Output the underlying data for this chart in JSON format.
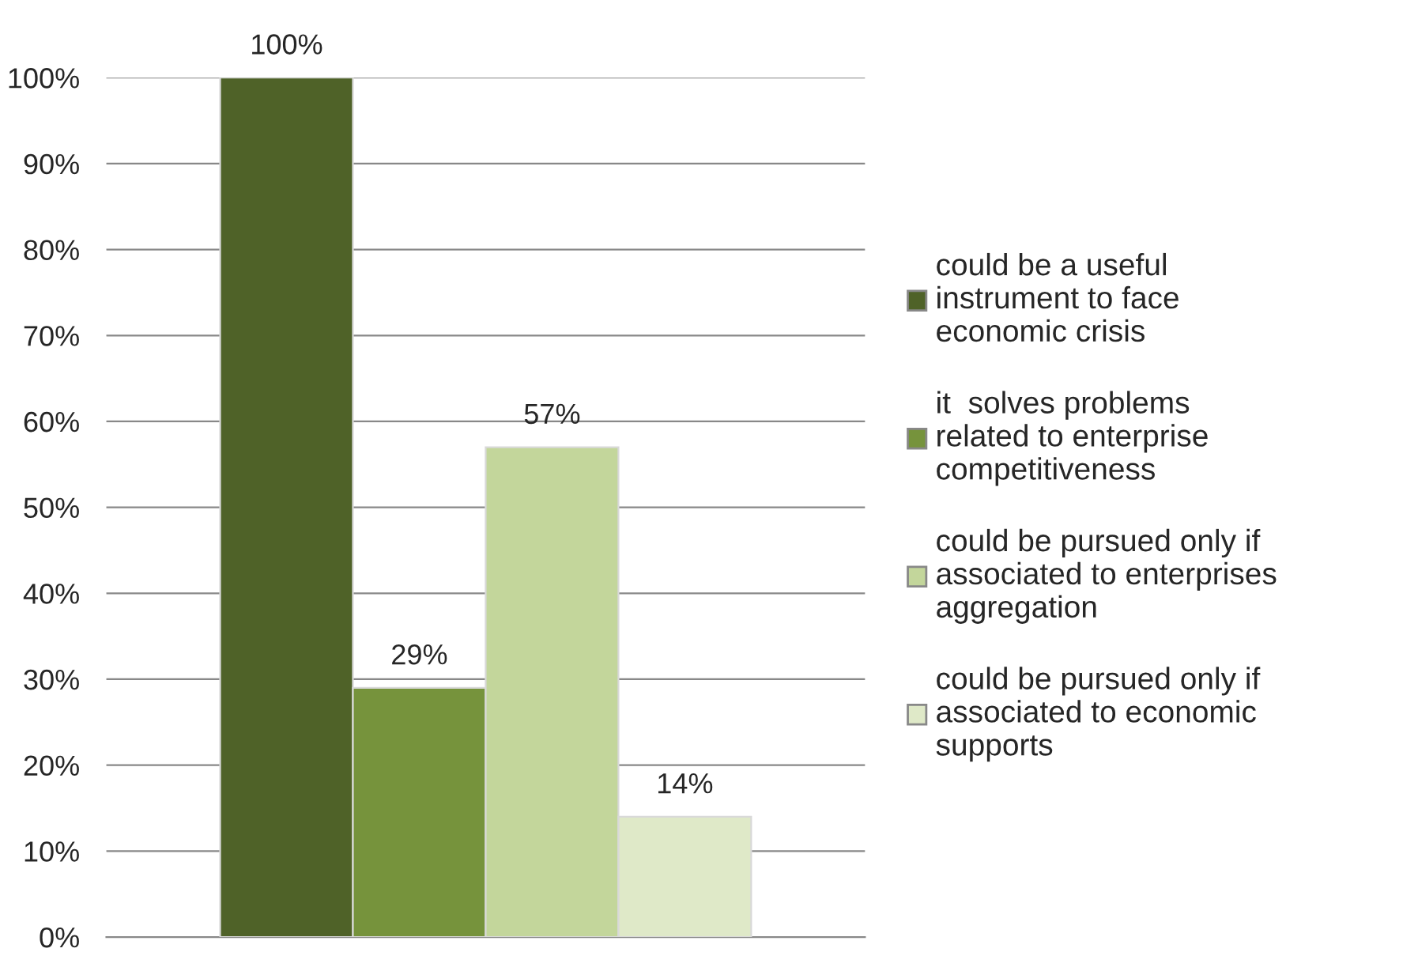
{
  "chart_data": {
    "type": "bar",
    "categories": [
      null
    ],
    "series": [
      {
        "name": "could be a useful instrument to face economic crisis",
        "color": "#4f6228",
        "values": [
          100
        ],
        "value_labels": [
          "100%"
        ]
      },
      {
        "name": "it  solves problems related to enterprise competitiveness",
        "color": "#76933c",
        "values": [
          29
        ],
        "value_labels": [
          "29%"
        ]
      },
      {
        "name": "could be pursued only if associated to enterprises aggregation",
        "color": "#c3d69b",
        "values": [
          57
        ],
        "value_labels": [
          "57%"
        ]
      },
      {
        "name": "could be pursued only if associated to economic supports",
        "color": "#dfe9c8",
        "values": [
          14
        ],
        "value_labels": [
          "14%"
        ]
      }
    ],
    "ylim": [
      0,
      100
    ],
    "yticks": [
      {
        "value": 0,
        "label": "0%"
      },
      {
        "value": 10,
        "label": "10%"
      },
      {
        "value": 20,
        "label": "20%"
      },
      {
        "value": 30,
        "label": "30%"
      },
      {
        "value": 40,
        "label": "40%"
      },
      {
        "value": 50,
        "label": "50%"
      },
      {
        "value": 60,
        "label": "60%"
      },
      {
        "value": 70,
        "label": "70%"
      },
      {
        "value": 80,
        "label": "80%"
      },
      {
        "value": 90,
        "label": "90%"
      },
      {
        "value": 100,
        "label": "100%"
      }
    ],
    "grid": "y",
    "legend": "right"
  }
}
